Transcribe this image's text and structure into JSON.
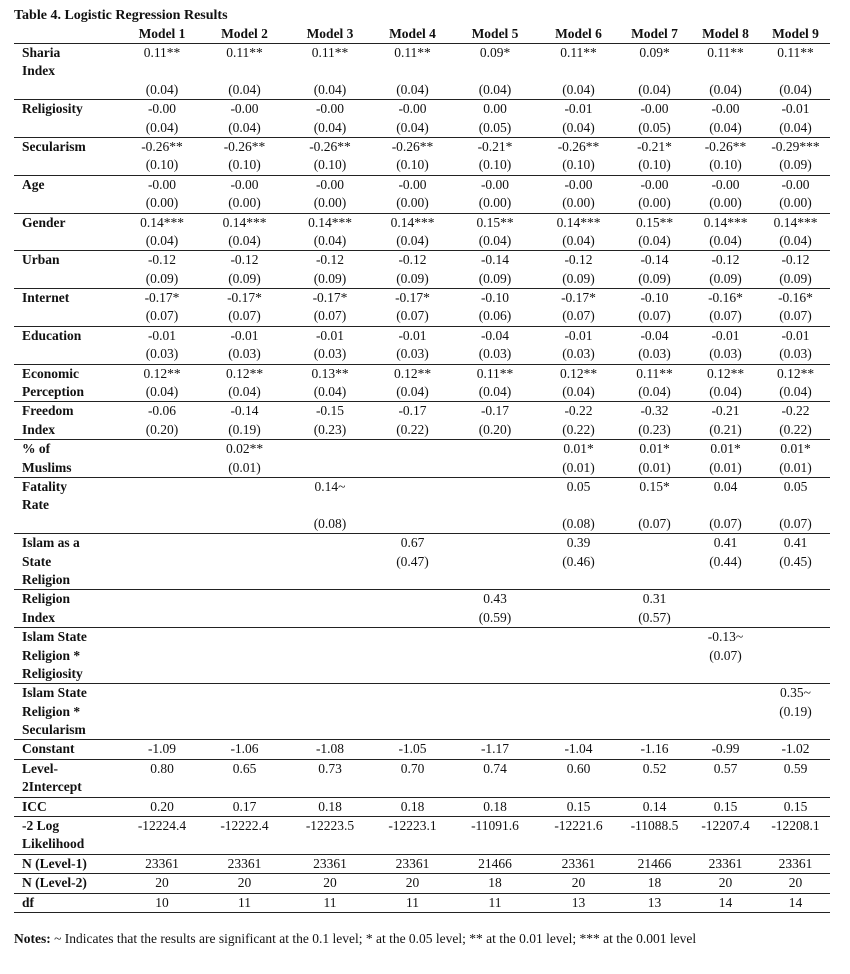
{
  "table": {
    "title": "Table 4. Logistic Regression Results",
    "models": [
      "Model 1",
      "Model 2",
      "Model 3",
      "Model 4",
      "Model 5",
      "Model 6",
      "Model 7",
      "Model 8",
      "Model 9"
    ],
    "rows": [
      {
        "name": [
          "Sharia",
          "Index"
        ],
        "lines": [
          [
            "0.11**",
            "0.11**",
            "0.11**",
            "0.11**",
            "0.09*",
            "0.11**",
            "0.09*",
            "0.11**",
            "0.11**"
          ],
          [
            "",
            "",
            "",
            "",
            "",
            "",
            "",
            "",
            ""
          ],
          [
            "(0.04)",
            "(0.04)",
            "(0.04)",
            "(0.04)",
            "(0.04)",
            "(0.04)",
            "(0.04)",
            "(0.04)",
            "(0.04)"
          ]
        ]
      },
      {
        "name": [
          "Religiosity"
        ],
        "lines": [
          [
            "-0.00",
            "-0.00",
            "-0.00",
            "-0.00",
            "0.00",
            "-0.01",
            "-0.00",
            "-0.00",
            "-0.01"
          ],
          [
            "(0.04)",
            "(0.04)",
            "(0.04)",
            "(0.04)",
            "(0.05)",
            "(0.04)",
            "(0.05)",
            "(0.04)",
            "(0.04)"
          ]
        ]
      },
      {
        "name": [
          "Secularism"
        ],
        "lines": [
          [
            "-0.26**",
            "-0.26**",
            "-0.26**",
            "-0.26**",
            "-0.21*",
            "-0.26**",
            "-0.21*",
            "-0.26**",
            "-0.29***"
          ],
          [
            "(0.10)",
            "(0.10)",
            "(0.10)",
            "(0.10)",
            "(0.10)",
            "(0.10)",
            "(0.10)",
            "(0.10)",
            "(0.09)"
          ]
        ]
      },
      {
        "name": [
          "Age"
        ],
        "lines": [
          [
            "-0.00",
            "-0.00",
            "-0.00",
            "-0.00",
            "-0.00",
            "-0.00",
            "-0.00",
            "-0.00",
            "-0.00"
          ],
          [
            "(0.00)",
            "(0.00)",
            "(0.00)",
            "(0.00)",
            "(0.00)",
            "(0.00)",
            "(0.00)",
            "(0.00)",
            "(0.00)"
          ]
        ]
      },
      {
        "name": [
          "Gender"
        ],
        "lines": [
          [
            "0.14***",
            "0.14***",
            "0.14***",
            "0.14***",
            "0.15**",
            "0.14***",
            "0.15**",
            "0.14***",
            "0.14***"
          ],
          [
            "(0.04)",
            "(0.04)",
            "(0.04)",
            "(0.04)",
            "(0.04)",
            "(0.04)",
            "(0.04)",
            "(0.04)",
            "(0.04)"
          ]
        ]
      },
      {
        "name": [
          "Urban"
        ],
        "lines": [
          [
            "-0.12",
            "-0.12",
            "-0.12",
            "-0.12",
            "-0.14",
            "-0.12",
            "-0.14",
            "-0.12",
            "-0.12"
          ],
          [
            "(0.09)",
            "(0.09)",
            "(0.09)",
            "(0.09)",
            "(0.09)",
            "(0.09)",
            "(0.09)",
            "(0.09)",
            "(0.09)"
          ]
        ]
      },
      {
        "name": [
          "Internet"
        ],
        "lines": [
          [
            "-0.17*",
            "-0.17*",
            "-0.17*",
            "-0.17*",
            "-0.10",
            "-0.17*",
            "-0.10",
            "-0.16*",
            "-0.16*"
          ],
          [
            "(0.07)",
            "(0.07)",
            "(0.07)",
            "(0.07)",
            "(0.06)",
            "(0.07)",
            "(0.07)",
            "(0.07)",
            "(0.07)"
          ]
        ]
      },
      {
        "name": [
          "Education"
        ],
        "lines": [
          [
            "-0.01",
            "-0.01",
            "-0.01",
            "-0.01",
            "-0.04",
            "-0.01",
            "-0.04",
            "-0.01",
            "-0.01"
          ],
          [
            "(0.03)",
            "(0.03)",
            "(0.03)",
            "(0.03)",
            "(0.03)",
            "(0.03)",
            "(0.03)",
            "(0.03)",
            "(0.03)"
          ]
        ]
      },
      {
        "name": [
          "Economic",
          "Perception"
        ],
        "lines": [
          [
            "0.12**",
            "0.12**",
            "0.13**",
            "0.12**",
            "0.11**",
            "0.12**",
            "0.11**",
            "0.12**",
            "0.12**"
          ],
          [
            "(0.04)",
            "(0.04)",
            "(0.04)",
            "(0.04)",
            "(0.04)",
            "(0.04)",
            "(0.04)",
            "(0.04)",
            "(0.04)"
          ]
        ]
      },
      {
        "name": [
          "Freedom",
          "Index"
        ],
        "lines": [
          [
            "-0.06",
            "-0.14",
            "-0.15",
            "-0.17",
            "-0.17",
            "-0.22",
            "-0.32",
            "-0.21",
            "-0.22"
          ],
          [
            "(0.20)",
            "(0.19)",
            "(0.23)",
            "(0.22)",
            "(0.20)",
            "(0.22)",
            "(0.23)",
            "(0.21)",
            "(0.22)"
          ]
        ]
      },
      {
        "name": [
          "% of",
          "Muslims"
        ],
        "lines": [
          [
            "",
            "0.02**",
            "",
            "",
            "",
            "0.01*",
            "0.01*",
            "0.01*",
            "0.01*"
          ],
          [
            "",
            "(0.01)",
            "",
            "",
            "",
            "(0.01)",
            "(0.01)",
            "(0.01)",
            "(0.01)"
          ]
        ]
      },
      {
        "name": [
          "Fatality",
          "Rate"
        ],
        "lines": [
          [
            "",
            "",
            "0.14~",
            "",
            "",
            "0.05",
            "0.15*",
            "0.04",
            "0.05"
          ],
          [
            "",
            "",
            "",
            "",
            "",
            "",
            "",
            "",
            ""
          ],
          [
            "",
            "",
            "(0.08)",
            "",
            "",
            "(0.08)",
            "(0.07)",
            "(0.07)",
            "(0.07)"
          ]
        ]
      },
      {
        "name": [
          "Islam as a",
          "State",
          "Religion"
        ],
        "lines": [
          [
            "",
            "",
            "",
            "0.67",
            "",
            "0.39",
            "",
            "0.41",
            "0.41"
          ],
          [
            "",
            "",
            "",
            "(0.47)",
            "",
            "(0.46)",
            "",
            "(0.44)",
            "(0.45)"
          ],
          [
            "",
            "",
            "",
            "",
            "",
            "",
            "",
            "",
            ""
          ]
        ]
      },
      {
        "name": [
          "Religion",
          "Index"
        ],
        "lines": [
          [
            "",
            "",
            "",
            "",
            "0.43",
            "",
            "0.31",
            "",
            ""
          ],
          [
            "",
            "",
            "",
            "",
            "(0.59)",
            "",
            "(0.57)",
            "",
            ""
          ]
        ]
      },
      {
        "name": [
          "Islam State",
          "Religion *",
          "Religiosity"
        ],
        "lines": [
          [
            "",
            "",
            "",
            "",
            "",
            "",
            "",
            "-0.13~",
            ""
          ],
          [
            "",
            "",
            "",
            "",
            "",
            "",
            "",
            "(0.07)",
            ""
          ],
          [
            "",
            "",
            "",
            "",
            "",
            "",
            "",
            "",
            ""
          ]
        ]
      },
      {
        "name": [
          "Islam State",
          "Religion *",
          "Secularism"
        ],
        "lines": [
          [
            "",
            "",
            "",
            "",
            "",
            "",
            "",
            "",
            "0.35~"
          ],
          [
            "",
            "",
            "",
            "",
            "",
            "",
            "",
            "",
            "(0.19)"
          ],
          [
            "",
            "",
            "",
            "",
            "",
            "",
            "",
            "",
            ""
          ]
        ]
      },
      {
        "name": [
          "Constant"
        ],
        "lines": [
          [
            "-1.09",
            "-1.06",
            "-1.08",
            "-1.05",
            "-1.17",
            "-1.04",
            "-1.16",
            "-0.99",
            "-1.02"
          ]
        ]
      },
      {
        "name": [
          "Level-",
          "2Intercept"
        ],
        "lines": [
          [
            "0.80",
            "0.65",
            "0.73",
            "0.70",
            "0.74",
            "0.60",
            "0.52",
            "0.57",
            "0.59"
          ],
          [
            "",
            "",
            "",
            "",
            "",
            "",
            "",
            "",
            ""
          ]
        ]
      },
      {
        "name": [
          "ICC"
        ],
        "lines": [
          [
            "0.20",
            "0.17",
            "0.18",
            "0.18",
            "0.18",
            "0.15",
            "0.14",
            "0.15",
            "0.15"
          ]
        ]
      },
      {
        "name": [
          "-2 Log",
          "Likelihood"
        ],
        "lines": [
          [
            "-12224.4",
            "-12222.4",
            "-12223.5",
            "-12223.1",
            "-11091.6",
            "-12221.6",
            "-11088.5",
            "-12207.4",
            "-12208.1"
          ],
          [
            "",
            "",
            "",
            "",
            "",
            "",
            "",
            "",
            ""
          ]
        ]
      },
      {
        "name": [
          "N (Level-1)"
        ],
        "lines": [
          [
            "23361",
            "23361",
            "23361",
            "23361",
            "21466",
            "23361",
            "21466",
            "23361",
            "23361"
          ]
        ]
      },
      {
        "name": [
          "N (Level-2)"
        ],
        "lines": [
          [
            "20",
            "20",
            "20",
            "20",
            "18",
            "20",
            "18",
            "20",
            "20"
          ]
        ]
      },
      {
        "name": [
          "df"
        ],
        "lines": [
          [
            "10",
            "11",
            "11",
            "11",
            "11",
            "13",
            "13",
            "14",
            "14"
          ]
        ]
      }
    ]
  },
  "notes": {
    "label": "Notes:",
    "text": " ~ Indicates that the results are significant at the 0.1 level; * at the 0.05 level; ** at the 0.01 level; *** at the 0.001 level"
  }
}
